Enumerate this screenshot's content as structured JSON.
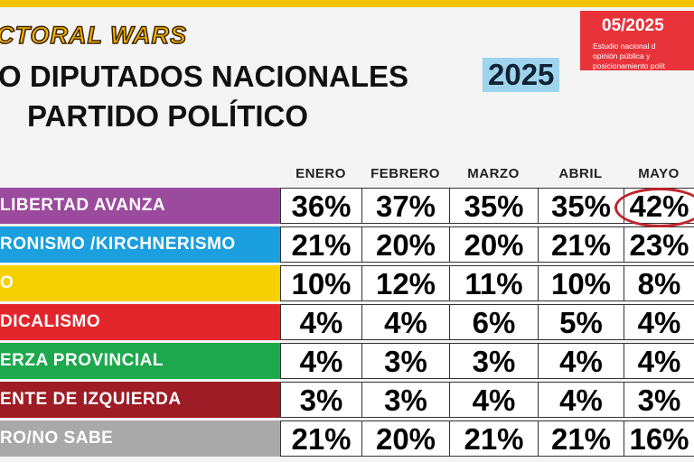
{
  "header": {
    "brand": "CTORAL WARS",
    "title_line1": "O DIPUTADOS NACIONALES",
    "title_year": "2025",
    "title_line2": "PARTIDO POLÍTICO",
    "badge": {
      "date": "05/2025",
      "lines": [
        "Estudio nacional d",
        "opinión pública y",
        "posicionamiento polít"
      ]
    }
  },
  "table": {
    "columns": [
      "ENERO",
      "FEBRERO",
      "MARZO",
      "ABRIL",
      "MAYO"
    ],
    "rows": [
      {
        "label": "LIBERTAD AVANZA",
        "values": [
          "36%",
          "37%",
          "35%",
          "35%",
          "42%"
        ]
      },
      {
        "label": "RONISMO /KIRCHNERISMO",
        "values": [
          "21%",
          "20%",
          "20%",
          "21%",
          "23%"
        ]
      },
      {
        "label": "O",
        "values": [
          "10%",
          "12%",
          "11%",
          "10%",
          "8%"
        ]
      },
      {
        "label": "DICALISMO",
        "values": [
          "4%",
          "4%",
          "6%",
          "5%",
          "4%"
        ]
      },
      {
        "label": "ERZA PROVINCIAL",
        "values": [
          "4%",
          "3%",
          "3%",
          "4%",
          "4%"
        ]
      },
      {
        "label": "ENTE DE IZQUIERDA",
        "values": [
          "3%",
          "3%",
          "4%",
          "4%",
          "3%"
        ]
      },
      {
        "label": "RO/NO SABE",
        "values": [
          "21%",
          "20%",
          "21%",
          "21%",
          "16%"
        ]
      }
    ]
  }
}
